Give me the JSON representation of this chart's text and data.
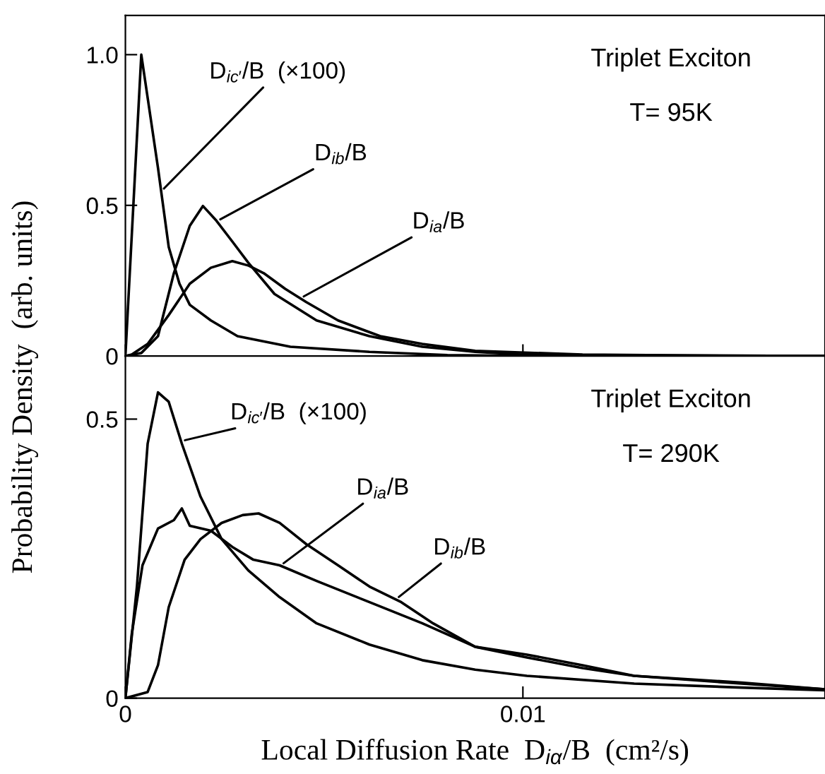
{
  "chart_data": [
    {
      "type": "line",
      "ylabel": "Probability Density  (arb. units)",
      "xlim": [
        0,
        0.0176
      ],
      "ylim": [
        0,
        1.13
      ],
      "xticks": [
        {
          "value": 0,
          "label": null
        },
        {
          "value": 0.01,
          "label": null
        }
      ],
      "yticks": [
        0,
        0.5,
        {
          "value": 1.0,
          "label": "1.0"
        }
      ],
      "tick_labels": "y",
      "grid": false,
      "legend": false,
      "annotations": [
        "Triplet Exciton",
        "T= 95K"
      ],
      "series": [
        {
          "name": "D$_{ic′}$/B  (×100)",
          "color": "#000000",
          "x": [
            0,
            0.0004,
            0.00082,
            0.00109,
            0.00136,
            0.00162,
            0.00215,
            0.00282,
            0.00415,
            0.00614,
            0.0081,
            0.0101,
            0.0176
          ],
          "values": [
            0,
            1.0,
            0.624,
            0.362,
            0.24,
            0.17,
            0.118,
            0.066,
            0.031,
            0.014,
            0.003,
            0,
            0
          ]
        },
        {
          "name": "D$_{ib}$/B",
          "color": "#000000",
          "x": [
            0,
            0.0004,
            0.00082,
            0.00122,
            0.00162,
            0.00195,
            0.00229,
            0.00269,
            0.00309,
            0.00375,
            0.00481,
            0.00614,
            0.00747,
            0.0088,
            0.0101,
            0.0176
          ],
          "values": [
            0,
            0.01,
            0.066,
            0.275,
            0.432,
            0.498,
            0.449,
            0.38,
            0.31,
            0.206,
            0.118,
            0.066,
            0.031,
            0.014,
            0.004,
            0
          ]
        },
        {
          "name": "D$_{ia}$/B",
          "color": "#000000",
          "x": [
            0,
            0.00016,
            0.00056,
            0.00109,
            0.00162,
            0.00215,
            0.00269,
            0.0031,
            0.00348,
            0.00402,
            0.00455,
            0.00535,
            0.00641,
            0.00747,
            0.0088,
            0.0115,
            0.0142,
            0.0176
          ],
          "values": [
            0,
            0.005,
            0.04,
            0.136,
            0.24,
            0.293,
            0.315,
            0.3,
            0.275,
            0.223,
            0.179,
            0.118,
            0.066,
            0.04,
            0.017,
            0.005,
            0.002,
            0
          ]
        }
      ]
    },
    {
      "type": "line",
      "xlabel": "Local Diffusion Rate  D$_{iα}$/B  (cm²/s)",
      "xlim": [
        0,
        0.0176
      ],
      "ylim": [
        0,
        0.613
      ],
      "xticks": [
        0,
        0.01
      ],
      "yticks": [
        0,
        0.5
      ],
      "grid": false,
      "legend": false,
      "annotations": [
        "Triplet Exciton",
        "T= 290K"
      ],
      "series": [
        {
          "name": "D$_{ic′}$/B  (×100)",
          "color": "#000000",
          "x": [
            0,
            0.00029,
            0.00056,
            0.00082,
            0.00109,
            0.00142,
            0.00189,
            0.00242,
            0.00309,
            0.00388,
            0.00481,
            0.00614,
            0.00747,
            0.0088,
            0.0101,
            0.0128,
            0.0155,
            0.0176
          ],
          "values": [
            0,
            0.2,
            0.456,
            0.548,
            0.531,
            0.456,
            0.361,
            0.285,
            0.229,
            0.181,
            0.134,
            0.096,
            0.068,
            0.051,
            0.04,
            0.026,
            0.019,
            0.014
          ]
        },
        {
          "name": "D$_{ia}$/B",
          "color": "#000000",
          "x": [
            0,
            0.00016,
            0.00043,
            0.00082,
            0.00122,
            0.00142,
            0.00162,
            0.00215,
            0.00269,
            0.00322,
            0.00388,
            0.00481,
            0.00614,
            0.00747,
            0.0088,
            0.0101,
            0.0115,
            0.0128,
            0.0155,
            0.0176
          ],
          "values": [
            0,
            0.115,
            0.238,
            0.304,
            0.319,
            0.34,
            0.309,
            0.3,
            0.271,
            0.248,
            0.238,
            0.21,
            0.172,
            0.134,
            0.092,
            0.073,
            0.054,
            0.04,
            0.026,
            0.016
          ]
        },
        {
          "name": "D$_{ib}$/B",
          "color": "#000000",
          "x": [
            0,
            0.00056,
            0.00082,
            0.00109,
            0.00149,
            0.00189,
            0.00242,
            0.00295,
            0.00335,
            0.00388,
            0.00455,
            0.00535,
            0.00614,
            0.00694,
            0.00774,
            0.0088,
            0.0101,
            0.0115,
            0.0128,
            0.0155,
            0.0176
          ],
          "values": [
            0,
            0.011,
            0.059,
            0.163,
            0.248,
            0.285,
            0.314,
            0.328,
            0.331,
            0.314,
            0.276,
            0.238,
            0.2,
            0.172,
            0.134,
            0.092,
            0.078,
            0.059,
            0.04,
            0.028,
            0.016
          ]
        }
      ]
    }
  ]
}
